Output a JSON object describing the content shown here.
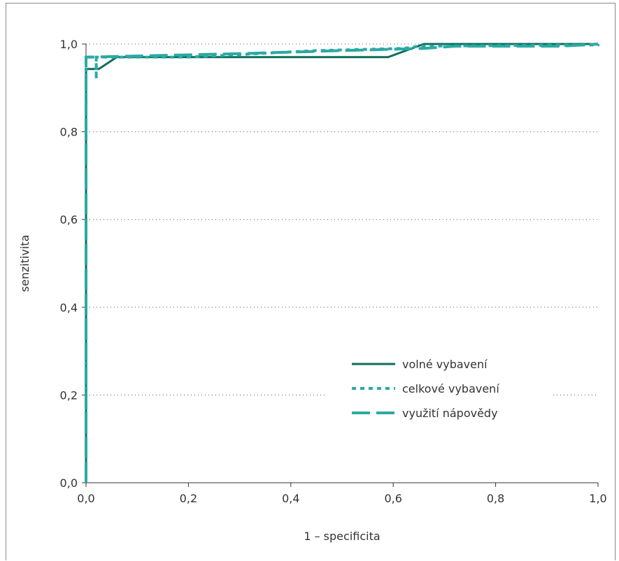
{
  "chart_data": {
    "type": "line",
    "xlabel": "1 – specificita",
    "ylabel": "senzitivita",
    "xlim": [
      0,
      1
    ],
    "ylim": [
      0,
      1
    ],
    "x_ticks": [
      "0,0",
      "0,2",
      "0,4",
      "0,6",
      "0,8",
      "1,0"
    ],
    "y_ticks": [
      "0,0",
      "0,2",
      "0,4",
      "0,6",
      "0,8",
      "1,0"
    ],
    "grid": "horizontal dotted",
    "legend_position": "center-right",
    "series": [
      {
        "name": "volné vybavení",
        "color": "#0e6e5a",
        "style": "solid",
        "points": [
          [
            0,
            0
          ],
          [
            0,
            0.943
          ],
          [
            0.025,
            0.943
          ],
          [
            0.06,
            0.97
          ],
          [
            0.59,
            0.97
          ],
          [
            0.66,
            1.0
          ],
          [
            1,
            1.0
          ]
        ]
      },
      {
        "name": "celkové vybavení",
        "color": "#2aaaa4",
        "style": "dotted",
        "points": [
          [
            0,
            0
          ],
          [
            0,
            0.97
          ],
          [
            0.02,
            0.97
          ],
          [
            0.02,
            0.92
          ],
          [
            0.02,
            0.97
          ],
          [
            0.2,
            0.97
          ],
          [
            0.45,
            0.985
          ],
          [
            0.62,
            0.99
          ],
          [
            0.65,
            0.995
          ],
          [
            1,
            0.998
          ],
          [
            1,
            1.0
          ]
        ]
      },
      {
        "name": "využití nápovědy",
        "color": "#2aaaa4",
        "style": "dashed",
        "points": [
          [
            0,
            0
          ],
          [
            0,
            0.97
          ],
          [
            0.3,
            0.978
          ],
          [
            0.5,
            0.985
          ],
          [
            0.66,
            0.99
          ],
          [
            0.72,
            0.995
          ],
          [
            0.93,
            0.995
          ],
          [
            1,
            1.0
          ]
        ]
      }
    ]
  }
}
